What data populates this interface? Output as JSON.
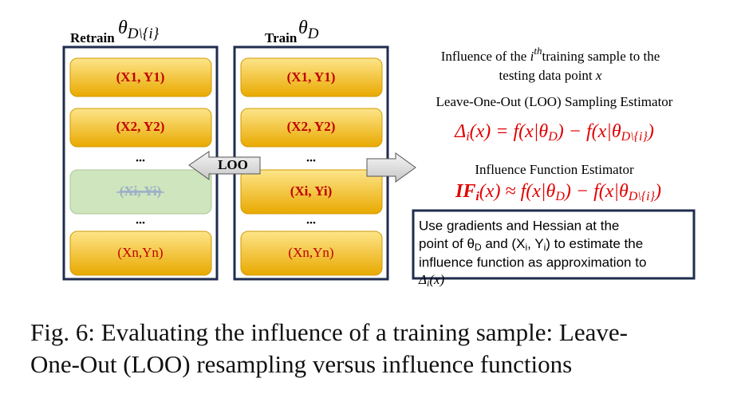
{
  "left_panel": {
    "label": "Retrain",
    "param": {
      "symbol": "θ",
      "subscript": "D\\{i}"
    },
    "items": [
      "(X1, Y1)",
      "(X2, Y2)",
      "...",
      "(Xi, Yi)",
      "...",
      "(Xn,Yn)"
    ]
  },
  "right_panel": {
    "label": "Train",
    "param": {
      "symbol": "θ",
      "subscript": "D"
    },
    "items": [
      "(X1, Y1)",
      "(X2, Y2)",
      "...",
      "(Xi, Yi)",
      "...",
      "(Xn,Yn)"
    ]
  },
  "arrow_label": "LOO",
  "description": {
    "line1": [
      "Influence of the ",
      "i",
      "th",
      "training sample to the"
    ],
    "line2": [
      "testing data point ",
      "x"
    ],
    "loo_title": "Leave-One-Out (LOO) Sampling Estimator",
    "loo_formula": [
      "Δ",
      "i",
      "(x) = f(x|θ",
      "D",
      ") − f(x|θ",
      "D\\{i}",
      ")"
    ],
    "if_title": "Influence Function Estimator",
    "if_formula": [
      "IF",
      "i",
      "(x) ≈ f(x|θ",
      "D",
      ") − f(x|θ",
      "D\\{i}",
      ")"
    ]
  },
  "note": {
    "line1": "Use gradients and Hessian at the",
    "line2": [
      "point of θ",
      "D",
      " and (X",
      "i",
      ", Y",
      "i",
      ") to estimate the"
    ],
    "line3": "influence function as approximation to",
    "line4": [
      "Δ",
      "i",
      "(x)"
    ]
  },
  "caption": {
    "line1": "Fig. 6: Evaluating the influence of a training sample: Leave-",
    "line2": "One-Out (LOO) resampling versus influence functions"
  }
}
